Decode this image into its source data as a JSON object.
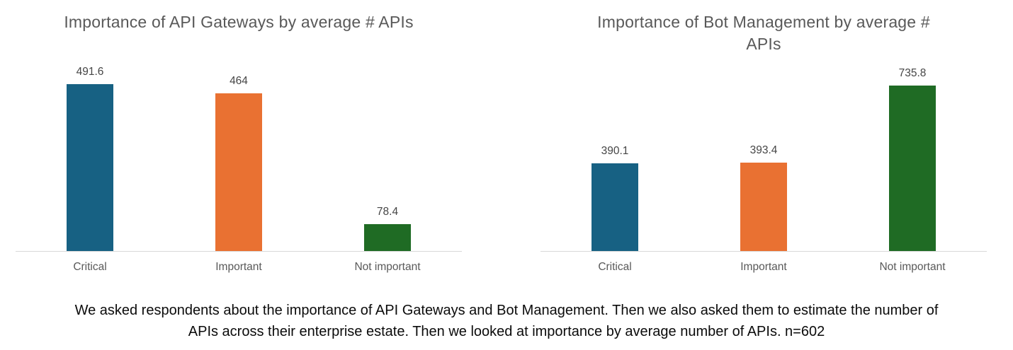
{
  "page": {
    "background": "#ffffff"
  },
  "palette": {
    "bar_blue": "#176183",
    "bar_orange": "#e97132",
    "bar_green": "#1f6b24",
    "title_text": "#595959",
    "value_label_text": "#454545",
    "category_label_text": "#595959",
    "axis_line": "#d8d8d8",
    "caption_text": "#0b0b0b"
  },
  "chart_data": [
    {
      "type": "bar",
      "title": "Importance of API Gateways by average # APIs",
      "title_lines": [
        "Importance of API Gateways by average # APIs"
      ],
      "categories": [
        "Critical",
        "Important",
        "Not important"
      ],
      "values": [
        491.6,
        464,
        78.4
      ],
      "value_labels": [
        "491.6",
        "464",
        "78.4"
      ],
      "bar_colors": [
        "#176183",
        "#e97132",
        "#1f6b24"
      ],
      "xlabel": "",
      "ylabel": "",
      "ylim": [
        0,
        500
      ],
      "grid": false,
      "legend": "none",
      "y_axis_visible": false,
      "data_labels": "above bars"
    },
    {
      "type": "bar",
      "title": "Importance of Bot Management by average # APIs",
      "title_lines": [
        "Importance of Bot Management by average #",
        "APIs"
      ],
      "categories": [
        "Critical",
        "Important",
        "Not important"
      ],
      "values": [
        390.1,
        393.4,
        735.8
      ],
      "value_labels": [
        "390.1",
        "393.4",
        "735.8"
      ],
      "bar_colors": [
        "#176183",
        "#e97132",
        "#1f6b24"
      ],
      "xlabel": "",
      "ylabel": "",
      "ylim": [
        0,
        800
      ],
      "grid": false,
      "legend": "none",
      "y_axis_visible": false,
      "data_labels": "above bars"
    }
  ],
  "caption": {
    "lines": [
      "We asked respondents about the importance of API Gateways and Bot Management. Then we also asked them to estimate the number of",
      "APIs across their enterprise estate. Then we looked at importance by average number of APIs. n=602"
    ]
  }
}
